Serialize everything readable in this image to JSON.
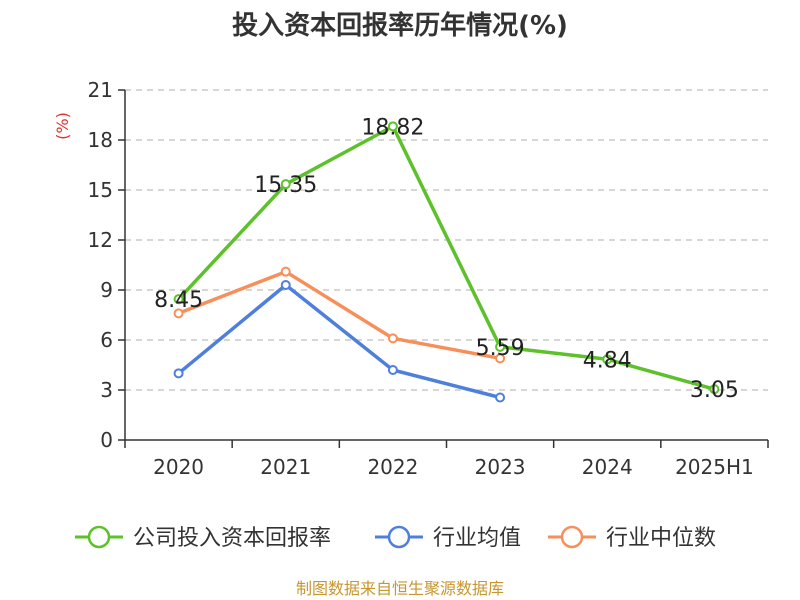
{
  "chart_data": {
    "type": "line",
    "title": "投入资本回报率历年情况(%)",
    "ylabel": "(%)",
    "categories": [
      "2020",
      "2021",
      "2022",
      "2023",
      "2024",
      "2025H1"
    ],
    "ylim": [
      0,
      21
    ],
    "yticks": [
      0,
      3,
      6,
      9,
      12,
      15,
      18,
      21
    ],
    "grid": true,
    "legend_position": "bottom",
    "series": [
      {
        "name": "公司投入资本回报率",
        "color": "#5cc12a",
        "values": [
          8.45,
          15.35,
          18.82,
          5.59,
          4.84,
          3.05
        ],
        "show_labels": true,
        "labels": [
          "8.45",
          "15.35",
          "18.82",
          "5.59",
          "4.84",
          "3.05"
        ]
      },
      {
        "name": "行业均值",
        "color": "#4f7fdc",
        "values": [
          4.0,
          9.3,
          4.2,
          2.55,
          null,
          null
        ],
        "show_labels": false
      },
      {
        "name": "行业中位数",
        "color": "#f78f5a",
        "values": [
          7.6,
          10.1,
          6.1,
          4.9,
          null,
          null
        ],
        "show_labels": false
      }
    ]
  },
  "source": "制图数据来自恒生聚源数据库"
}
